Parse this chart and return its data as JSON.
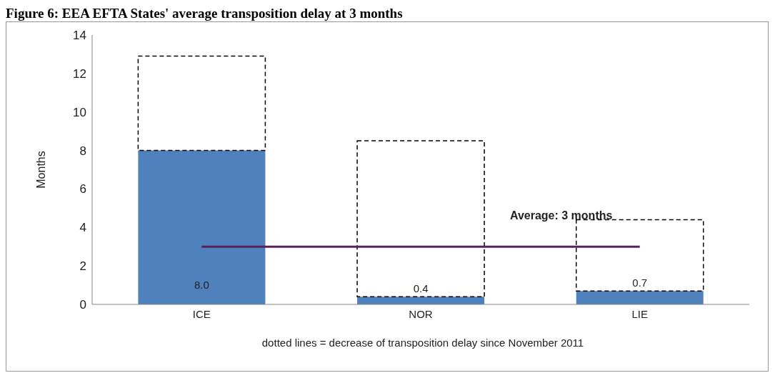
{
  "chart_data": {
    "type": "bar",
    "title": "Figure 6:      EEA EFTA States' average transposition delay at 3 months",
    "ylabel": "Months",
    "categories": [
      "ICE",
      "NOR",
      "LIE"
    ],
    "stacked": true,
    "series": [
      {
        "color": "#4f81bd",
        "values": [
          8.0,
          0.4,
          0.7
        ],
        "value_labels": [
          "8.0",
          "0.4",
          "0.7"
        ]
      },
      {
        "color": "#000000",
        "line_style": "dashed",
        "values": [
          4.9,
          8.1,
          3.7
        ]
      }
    ],
    "ylim": [
      0,
      14
    ],
    "yticks": [
      0,
      2,
      4,
      6,
      8,
      10,
      12,
      14
    ],
    "ref_lines": [
      {
        "axis": "y",
        "value": 3,
        "label": "Average: 3 months",
        "color": "#5b1f5e"
      }
    ],
    "annotations": [
      "dotted lines = decrease of transposition delay since November 2011"
    ],
    "grid": false,
    "legend": false
  }
}
